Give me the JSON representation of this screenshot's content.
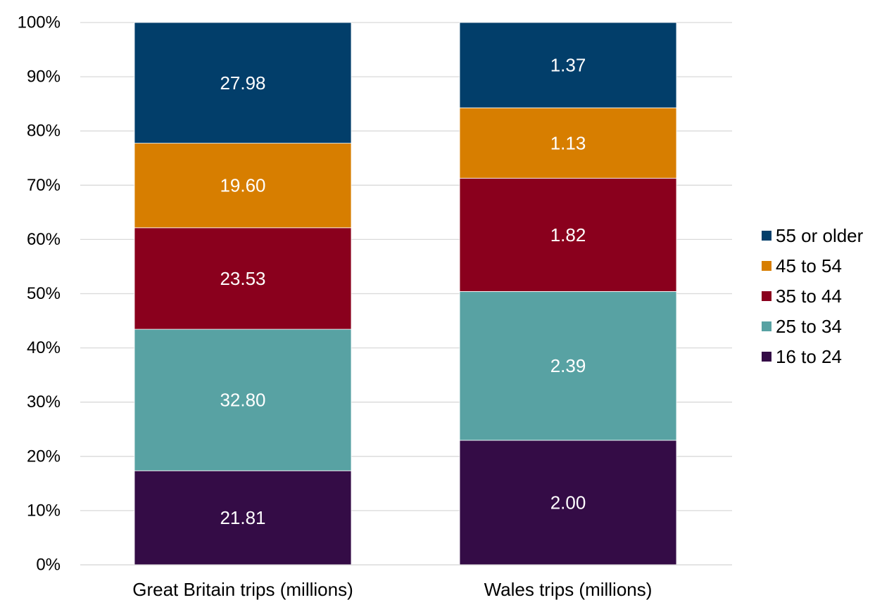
{
  "chart_data": {
    "type": "bar",
    "stacked": true,
    "normalized": true,
    "categories": [
      "Great Britain trips (millions)",
      "Wales trips (millions)"
    ],
    "series": [
      {
        "name": "16 to 24",
        "values": [
          21.81,
          2.0
        ],
        "labels": [
          "21.81",
          "2.00"
        ],
        "color": "#340c46"
      },
      {
        "name": "25 to 34",
        "values": [
          32.8,
          2.39
        ],
        "labels": [
          "32.80",
          "2.39"
        ],
        "color": "#58a2a3"
      },
      {
        "name": "35 to 44",
        "values": [
          23.53,
          1.82
        ],
        "labels": [
          "23.53",
          "1.82"
        ],
        "color": "#8a001d"
      },
      {
        "name": "45 to 54",
        "values": [
          19.6,
          1.13
        ],
        "labels": [
          "19.60",
          "1.13"
        ],
        "color": "#d77e00"
      },
      {
        "name": "55 or older",
        "values": [
          27.98,
          1.37
        ],
        "labels": [
          "27.98",
          "1.37"
        ],
        "color": "#023e6a"
      }
    ],
    "y_ticks": [
      "0%",
      "10%",
      "20%",
      "30%",
      "40%",
      "50%",
      "60%",
      "70%",
      "80%",
      "90%",
      "100%"
    ],
    "ylim": [
      0,
      100
    ],
    "grid": true,
    "legend_position": "right",
    "legend_order": [
      "55 or older",
      "45 to 54",
      "35 to 44",
      "25 to 34",
      "16 to 24"
    ],
    "gridline_color": "#d9d9d9"
  }
}
